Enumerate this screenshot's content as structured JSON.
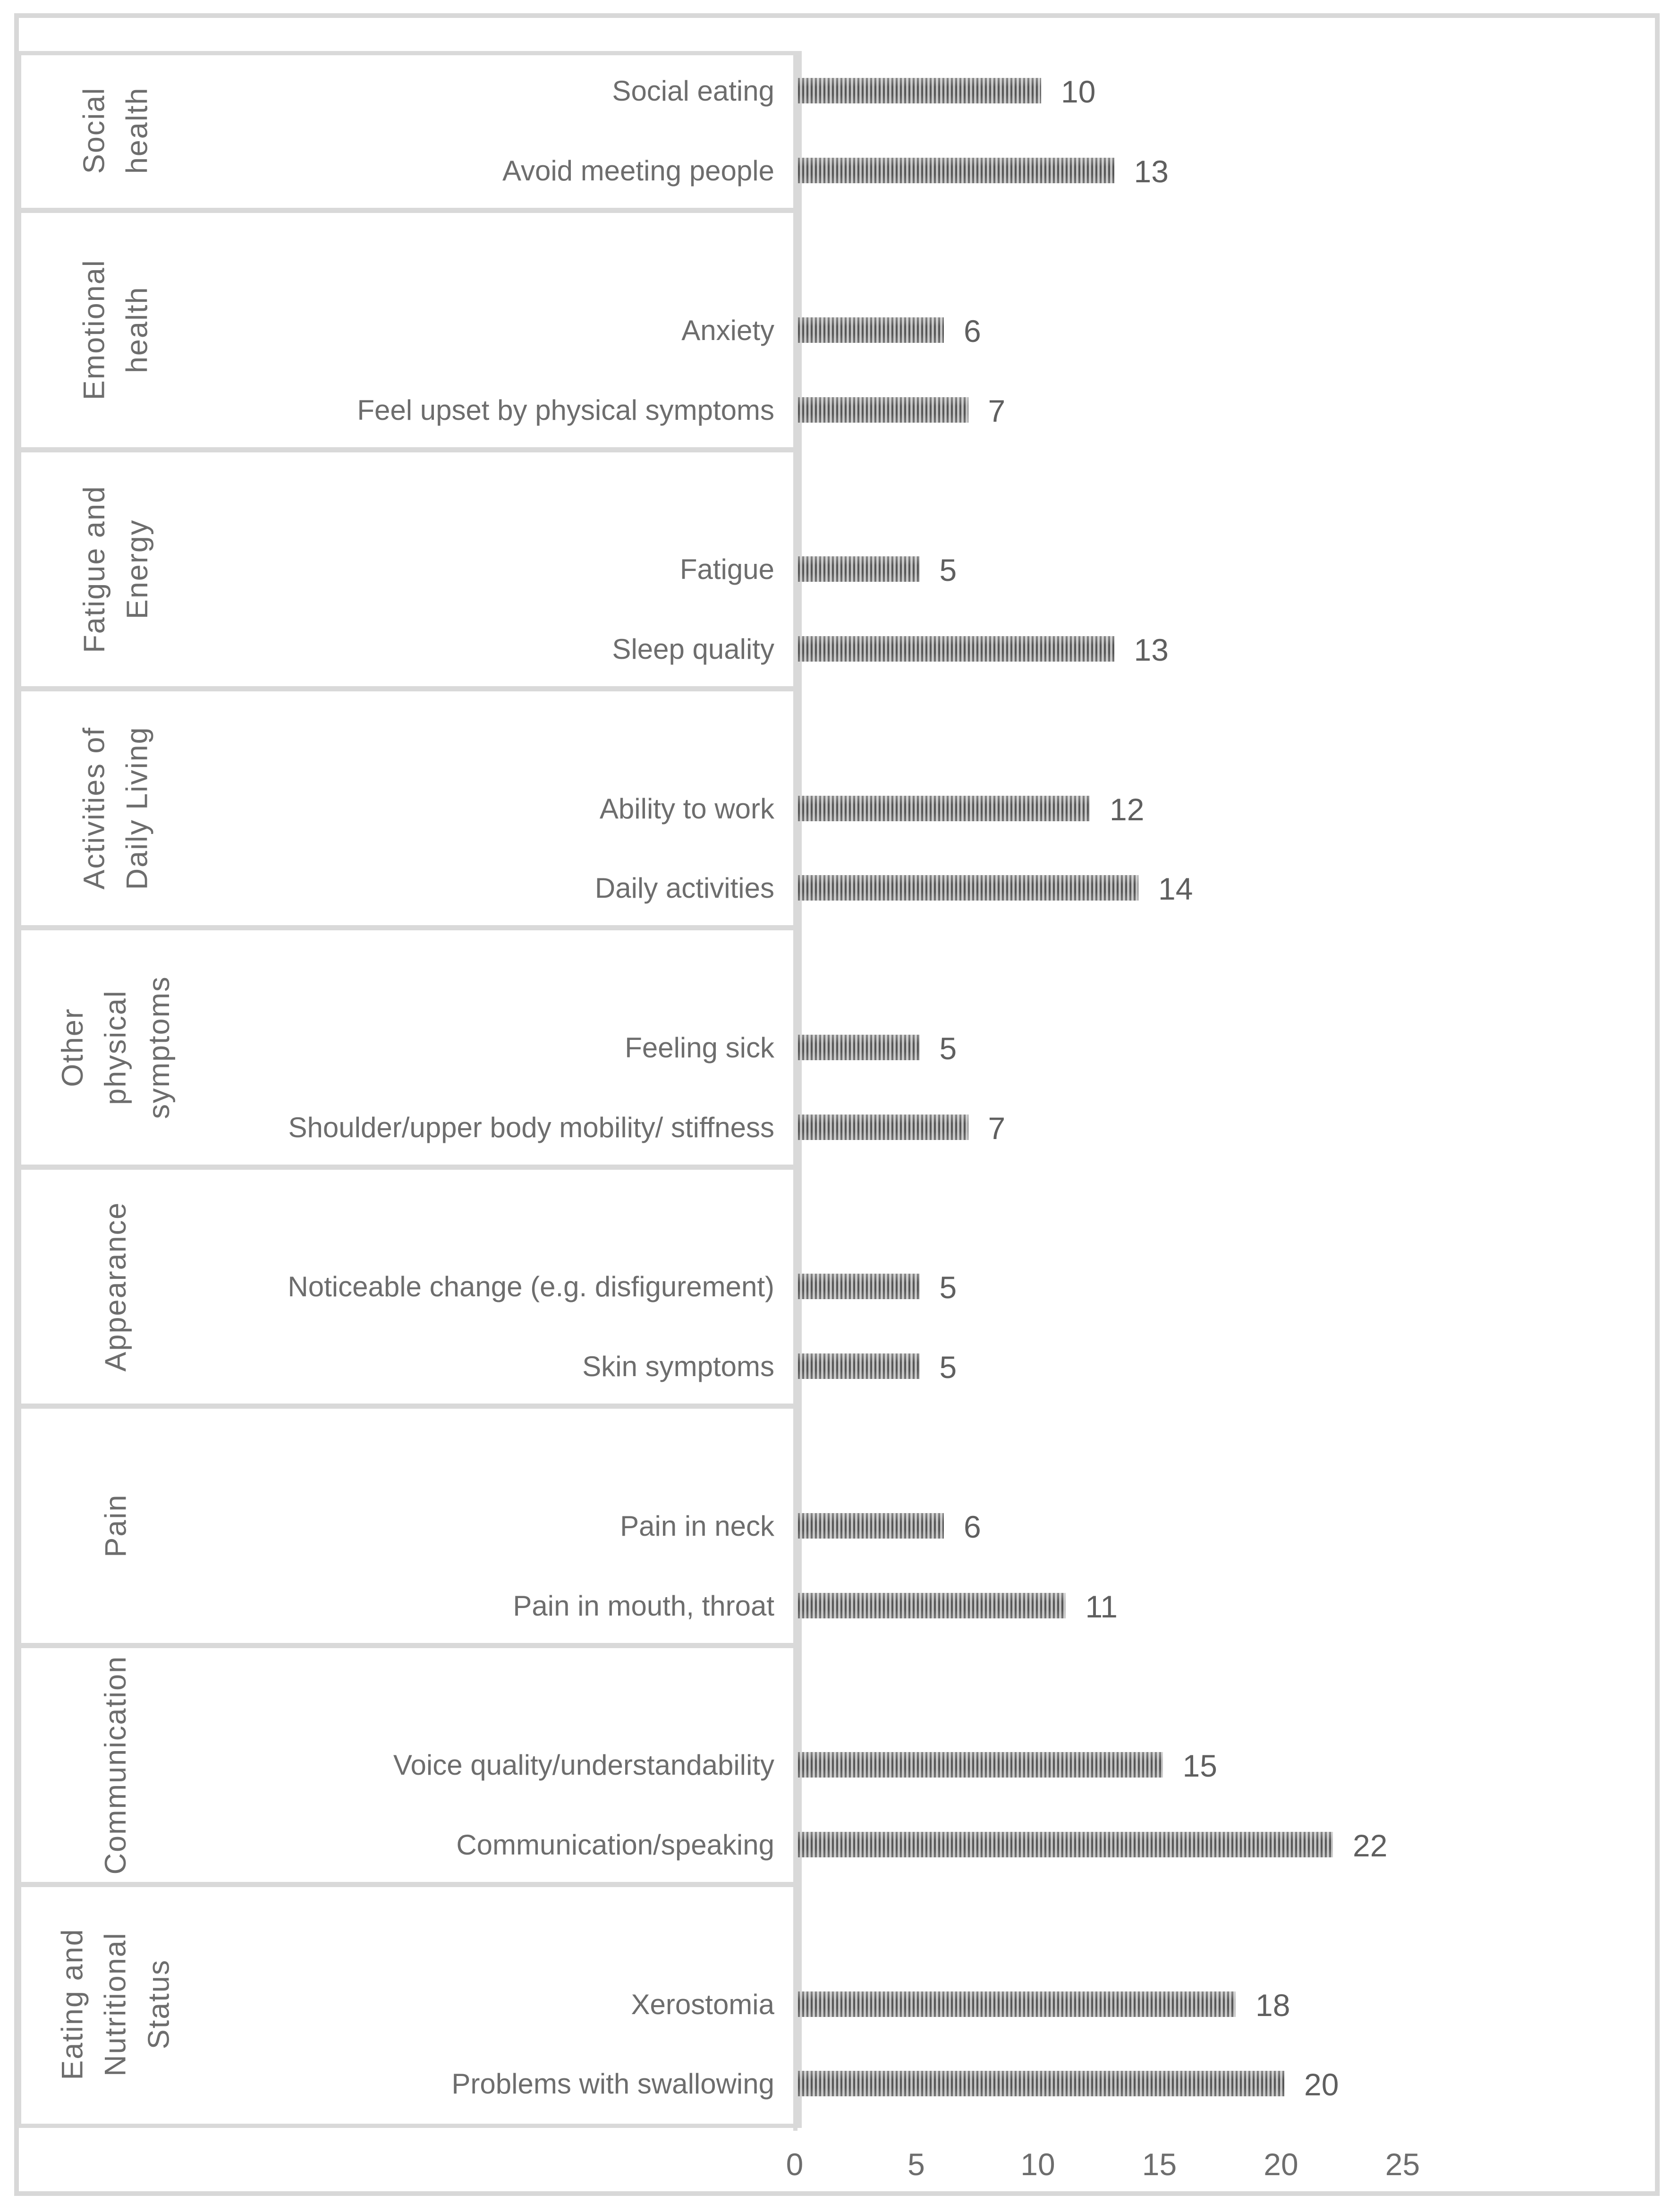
{
  "chart_data": {
    "type": "bar",
    "orientation": "horizontal",
    "title": "",
    "xlabel": "",
    "ylabel": "",
    "xlim": [
      0,
      25
    ],
    "x_ticks": [
      0,
      5,
      10,
      15,
      20,
      25
    ],
    "grid": false,
    "legend": false,
    "bar_style": "vertical-stripe-hatch",
    "groups": [
      {
        "label": "Social health",
        "label_lines": "Social\nhealth",
        "items": [
          {
            "label": "Social eating",
            "value": 10
          },
          {
            "label": "Avoid meeting people",
            "value": 13
          }
        ]
      },
      {
        "label": "Emotional health",
        "label_lines": "Emotional\nhealth",
        "items": [
          {
            "label": "Anxiety",
            "value": 6
          },
          {
            "label": "Feel upset by physical symptoms",
            "value": 7
          }
        ]
      },
      {
        "label": "Fatigue and Energy",
        "label_lines": "Fatigue and\nEnergy",
        "items": [
          {
            "label": "Fatigue",
            "value": 5
          },
          {
            "label": "Sleep quality",
            "value": 13
          }
        ]
      },
      {
        "label": "Activities of Daily Living",
        "label_lines": "Activities of\nDaily Living",
        "items": [
          {
            "label": "Ability to work",
            "value": 12
          },
          {
            "label": "Daily activities",
            "value": 14
          }
        ]
      },
      {
        "label": "Other physical symptoms",
        "label_lines": "Other physical\nsymptoms",
        "items": [
          {
            "label": "Feeling sick",
            "value": 5
          },
          {
            "label": "Shoulder/upper body mobility/ stiffness",
            "value": 7
          }
        ]
      },
      {
        "label": "Appearance",
        "label_lines": "Appearance",
        "items": [
          {
            "label": "Noticeable change (e.g. disfigurement)",
            "value": 5
          },
          {
            "label": "Skin symptoms",
            "value": 5
          }
        ]
      },
      {
        "label": "Pain",
        "label_lines": "Pain",
        "items": [
          {
            "label": "Pain in neck",
            "value": 6
          },
          {
            "label": "Pain in mouth, throat",
            "value": 11
          }
        ]
      },
      {
        "label": "Communication",
        "label_lines": "Communication",
        "items": [
          {
            "label": "Voice quality/understandability",
            "value": 15
          },
          {
            "label": "Communication/speaking",
            "value": 22
          }
        ]
      },
      {
        "label": "Eating and Nutritional Status",
        "label_lines": "Eating and\nNutritional\nStatus",
        "items": [
          {
            "label": "Xerostomia",
            "value": 18
          },
          {
            "label": "Problems with swallowing",
            "value": 20
          }
        ]
      }
    ]
  },
  "colors": {
    "frame_border": "#d8d8d8",
    "box_border": "#d9d9d9",
    "bar_stripe_dark": "#575757",
    "bar_stripe_light": "#bdbdbd",
    "label_text": "#6d6d6d",
    "value_text": "#5f5f5f",
    "background": "#ffffff"
  }
}
